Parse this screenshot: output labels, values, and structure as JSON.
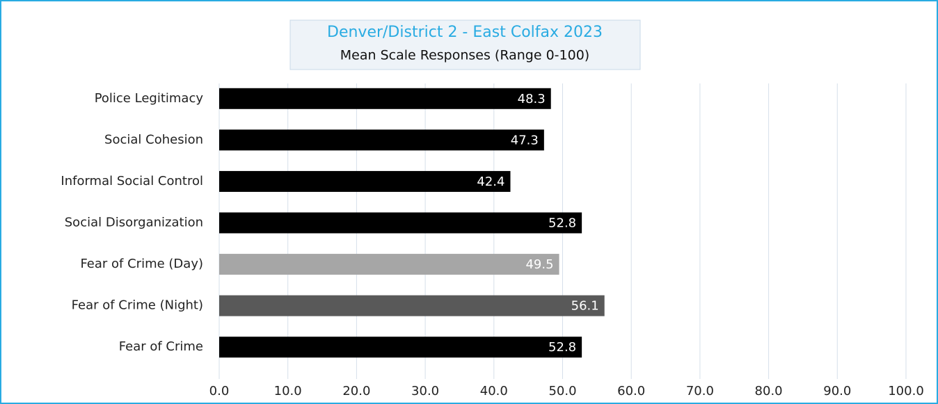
{
  "chart_data": {
    "type": "hbar",
    "title": "Denver/District 2 - East Colfax 2023",
    "subtitle": "Mean Scale Responses (Range 0-100)",
    "categories": [
      "Police Legitimacy",
      "Social Cohesion",
      "Informal Social Control",
      "Social Disorganization",
      "Fear of Crime (Day)",
      "Fear of Crime (Night)",
      "Fear of Crime"
    ],
    "values": [
      48.3,
      47.3,
      42.4,
      52.8,
      49.5,
      56.1,
      52.8
    ],
    "colors": [
      "#000000",
      "#000000",
      "#000000",
      "#000000",
      "#a6a6a6",
      "#595959",
      "#000000"
    ],
    "xlim": [
      0,
      100
    ],
    "xticks": [
      {
        "value": 0,
        "label": "0.0"
      },
      {
        "value": 10,
        "label": "10.0"
      },
      {
        "value": 20,
        "label": "20.0"
      },
      {
        "value": 30,
        "label": "30.0"
      },
      {
        "value": 40,
        "label": "40.0"
      },
      {
        "value": 50,
        "label": "50.0"
      },
      {
        "value": 60,
        "label": "60.0"
      },
      {
        "value": 70,
        "label": "70.0"
      },
      {
        "value": 80,
        "label": "80.0"
      },
      {
        "value": 90,
        "label": "90.0"
      },
      {
        "value": 100,
        "label": "100.0"
      }
    ],
    "grid": true
  }
}
